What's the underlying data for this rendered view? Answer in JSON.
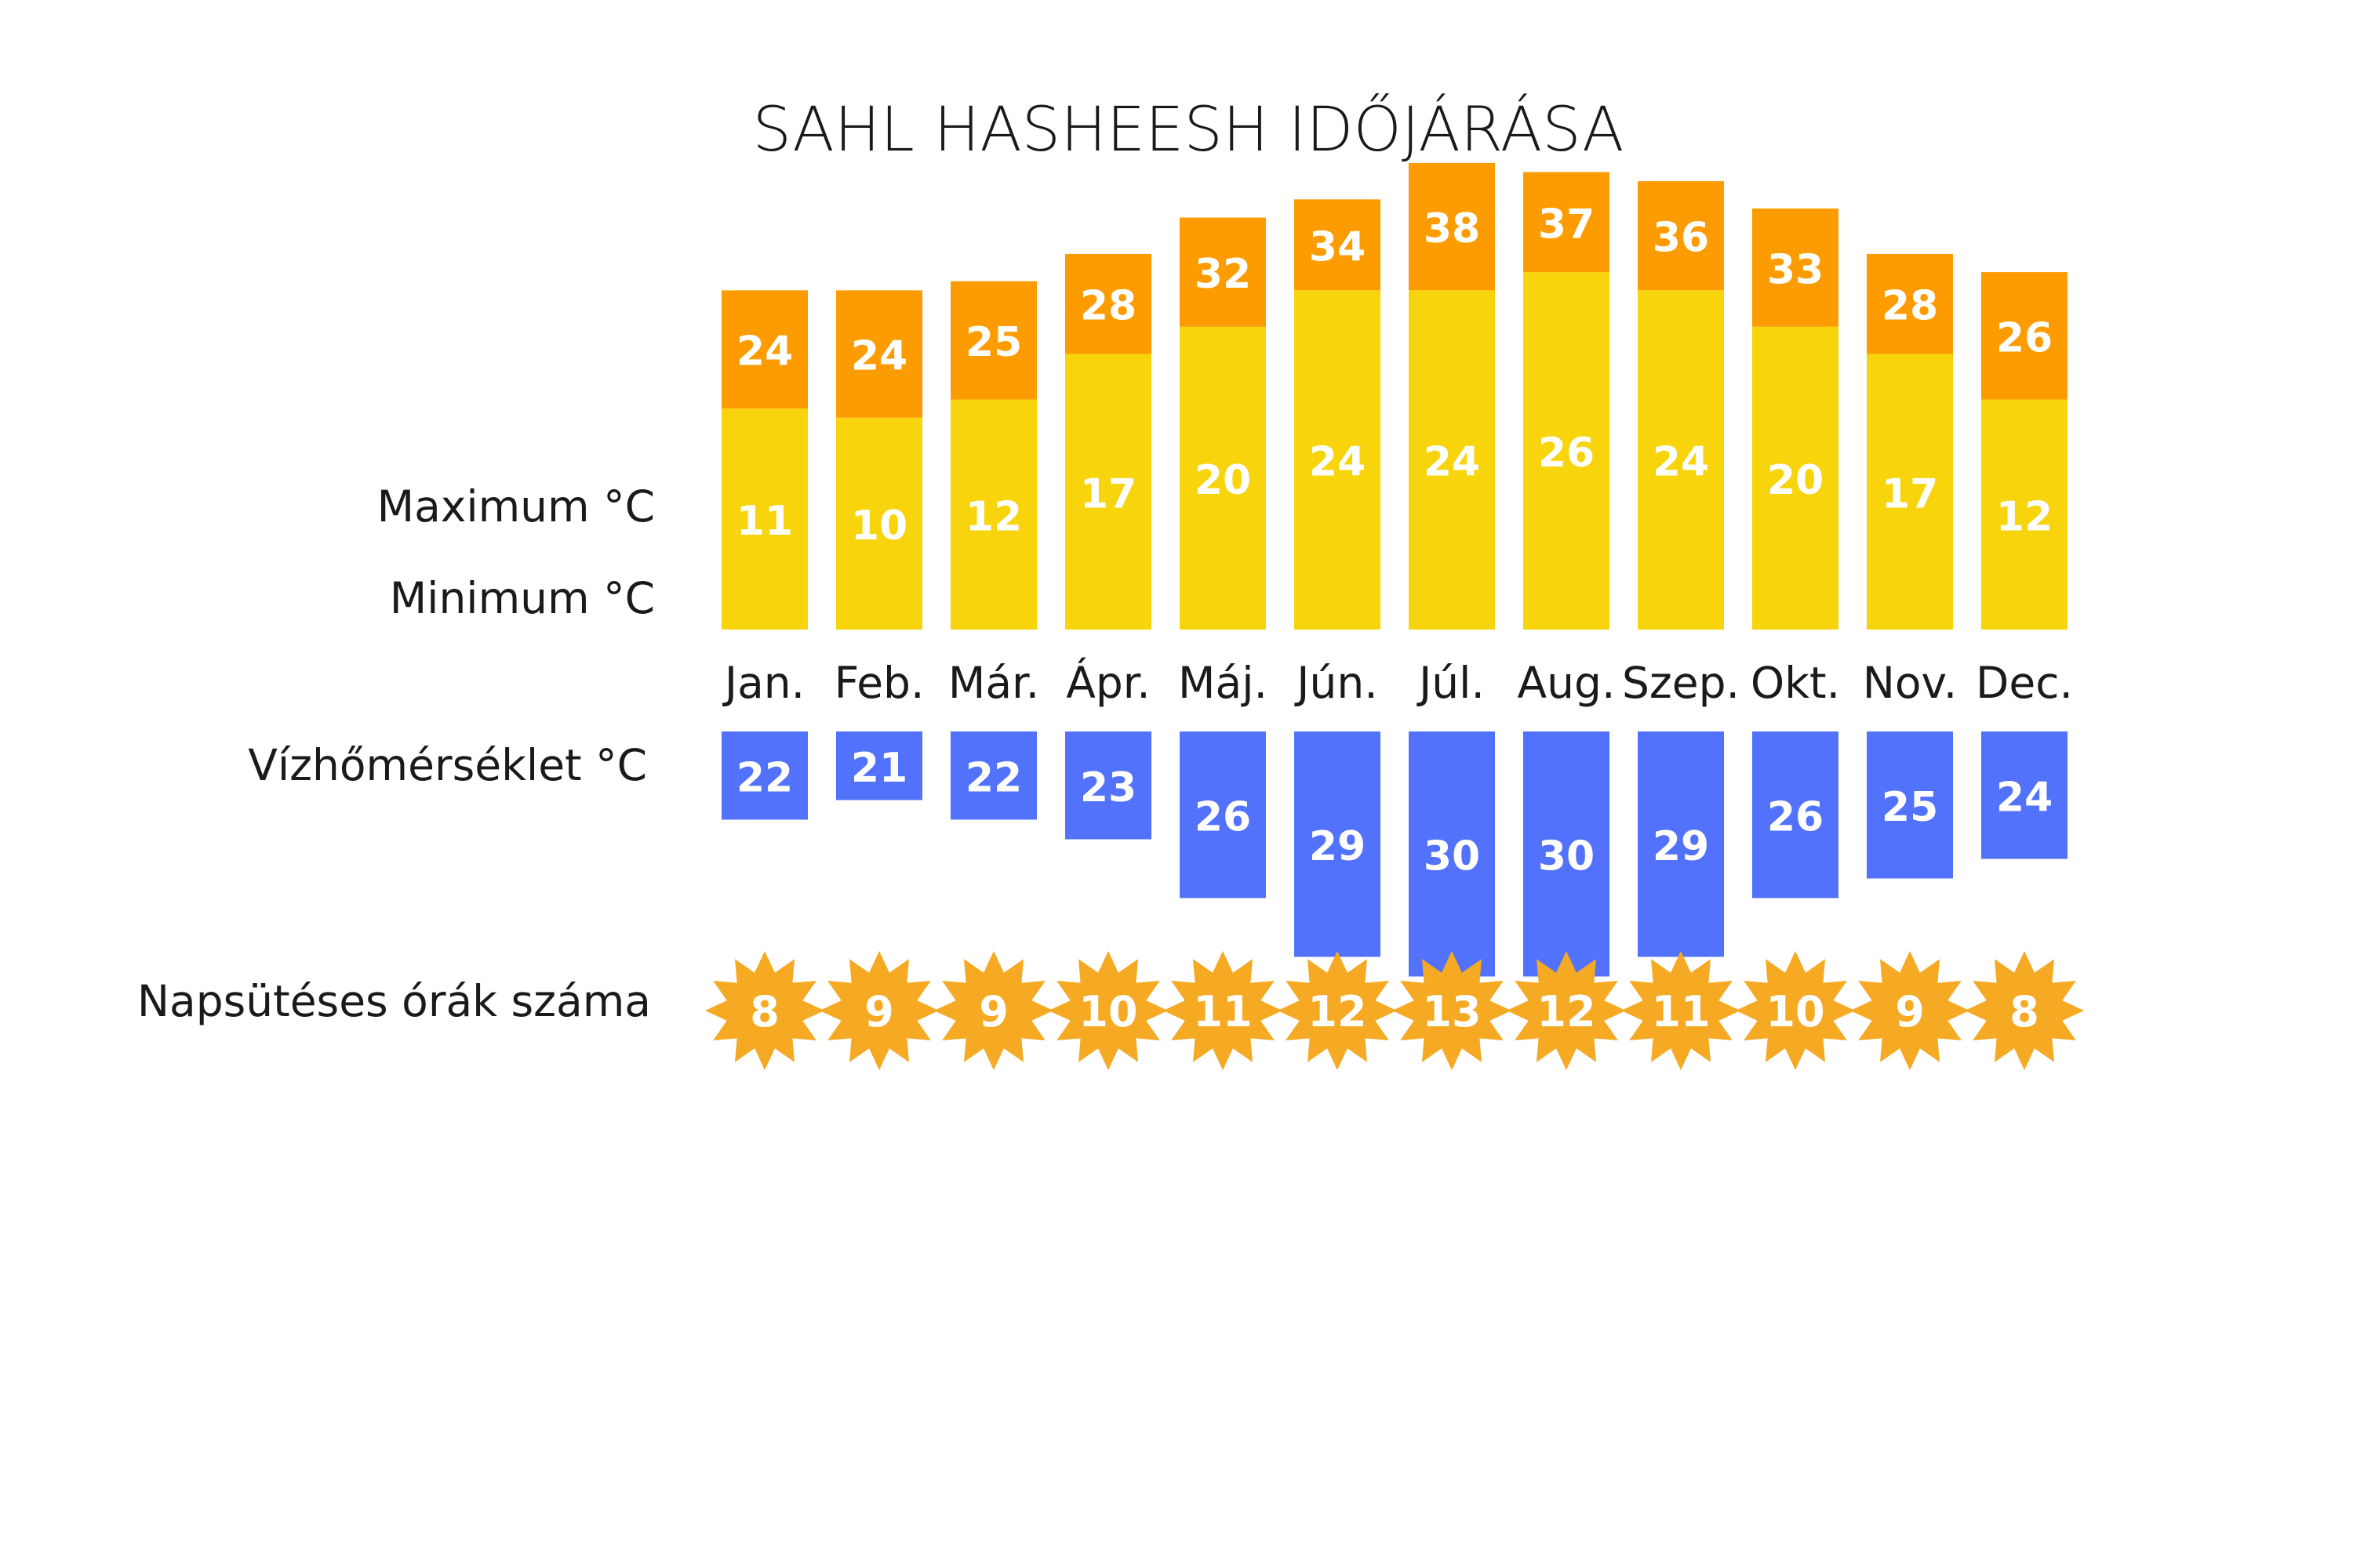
{
  "title": "SAHL HASHEESH IDŐJÁRÁSA",
  "row_labels": {
    "max": "Maximum  °C",
    "min": "Minimum  °C",
    "water": "Vízhőmérséklet  °C",
    "sun": "Napsütéses órák száma"
  },
  "colors": {
    "max": "#fd9c01",
    "min": "#f8d40d",
    "water": "#5272fc",
    "sun": "#f6a922",
    "text": "#1a1a1a",
    "value_text": "#ffffff"
  },
  "chart_data": {
    "type": "bar",
    "categories": [
      "Jan.",
      "Feb.",
      "Már.",
      "Ápr.",
      "Máj.",
      "Jún.",
      "Júl.",
      "Aug.",
      "Szep.",
      "Okt.",
      "Nov.",
      "Dec."
    ],
    "series": [
      {
        "name": "Maximum  °C",
        "values": [
          24,
          24,
          25,
          28,
          32,
          34,
          38,
          37,
          36,
          33,
          28,
          26
        ]
      },
      {
        "name": "Minimum  °C",
        "values": [
          11,
          10,
          12,
          17,
          20,
          24,
          24,
          26,
          24,
          20,
          17,
          12
        ]
      },
      {
        "name": "Vízhőmérséklet  °C",
        "values": [
          22,
          21,
          22,
          23,
          26,
          29,
          30,
          30,
          29,
          26,
          25,
          24
        ]
      },
      {
        "name": "Napsütéses órák száma",
        "values": [
          8,
          9,
          9,
          10,
          11,
          12,
          13,
          12,
          11,
          10,
          9,
          8
        ]
      }
    ]
  }
}
